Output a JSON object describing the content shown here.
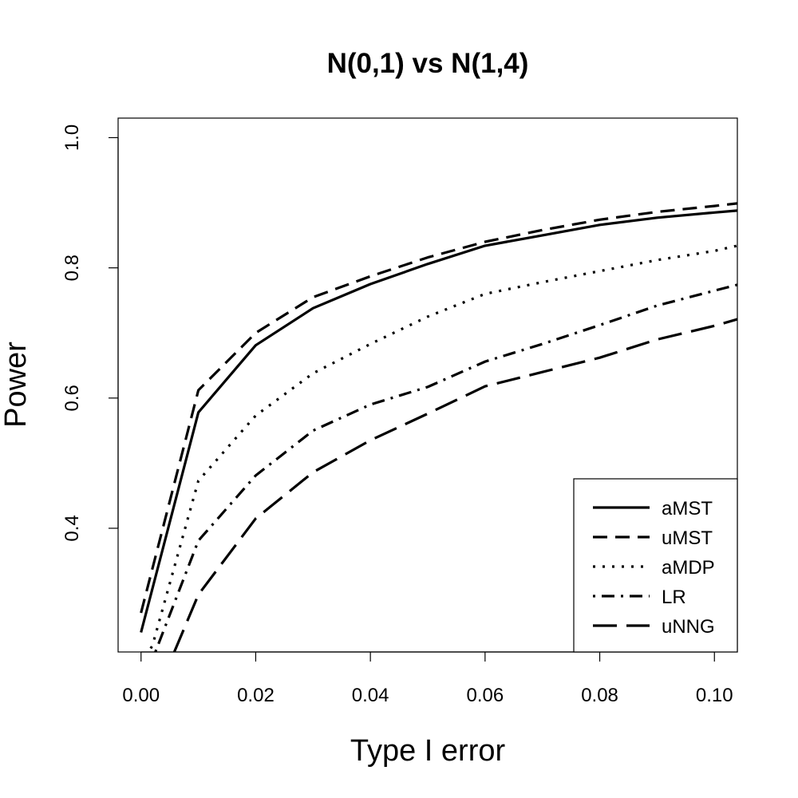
{
  "chart_data": {
    "type": "line",
    "title": "N(0,1) vs N(1,4)",
    "xlabel": "Type I error",
    "ylabel": "Power",
    "xlim": [
      -0.004,
      0.104
    ],
    "ylim": [
      0.21,
      1.03
    ],
    "x_ticks": [
      "0.00",
      "0.02",
      "0.04",
      "0.06",
      "0.08",
      "0.10"
    ],
    "y_ticks": [
      "0.4",
      "0.6",
      "0.8",
      "1.0"
    ],
    "grid": false,
    "legend_position": "bottom-right",
    "series": [
      {
        "name": "aMST",
        "line_style": "solid",
        "x": [
          0,
          0.01,
          0.02,
          0.03,
          0.04,
          0.05,
          0.06,
          0.07,
          0.08,
          0.09,
          0.1,
          0.104
        ],
        "y": [
          0.24,
          0.578,
          0.681,
          0.738,
          0.775,
          0.806,
          0.834,
          0.85,
          0.866,
          0.877,
          0.885,
          0.888
        ]
      },
      {
        "name": "uMST",
        "line_style": "dashed",
        "x": [
          0,
          0.01,
          0.02,
          0.03,
          0.04,
          0.05,
          0.06,
          0.07,
          0.08,
          0.09,
          0.1,
          0.104
        ],
        "y": [
          0.27,
          0.612,
          0.7,
          0.755,
          0.787,
          0.816,
          0.84,
          0.858,
          0.874,
          0.886,
          0.895,
          0.899
        ]
      },
      {
        "name": "aMDP",
        "line_style": "dotted",
        "x": [
          0,
          0.002,
          0.01,
          0.02,
          0.03,
          0.04,
          0.05,
          0.06,
          0.07,
          0.08,
          0.09,
          0.1,
          0.104
        ],
        "y": [
          0.19,
          0.22,
          0.473,
          0.573,
          0.638,
          0.683,
          0.725,
          0.76,
          0.778,
          0.795,
          0.812,
          0.826,
          0.834
        ]
      },
      {
        "name": "LR",
        "line_style": "dotdash",
        "x": [
          0.0025,
          0.01,
          0.02,
          0.03,
          0.04,
          0.05,
          0.06,
          0.07,
          0.08,
          0.09,
          0.1,
          0.104
        ],
        "y": [
          0.21,
          0.381,
          0.481,
          0.55,
          0.59,
          0.617,
          0.656,
          0.683,
          0.712,
          0.742,
          0.765,
          0.774
        ]
      },
      {
        "name": "uNNG",
        "line_style": "longdash",
        "x": [
          0.0058,
          0.01,
          0.02,
          0.03,
          0.04,
          0.05,
          0.06,
          0.07,
          0.08,
          0.09,
          0.1,
          0.104
        ],
        "y": [
          0.21,
          0.298,
          0.415,
          0.486,
          0.535,
          0.576,
          0.618,
          0.64,
          0.662,
          0.69,
          0.711,
          0.721
        ]
      }
    ]
  }
}
